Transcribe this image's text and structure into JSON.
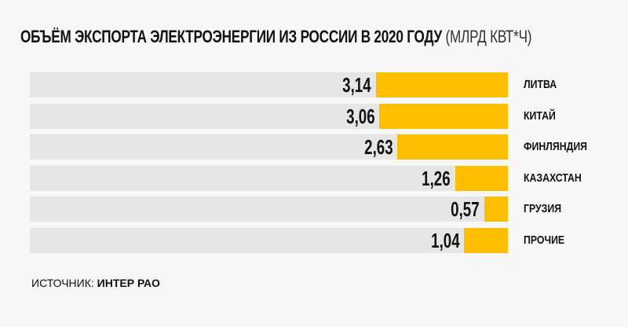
{
  "header": {
    "title": "ОБЪЁМ ЭКСПОРТА ЭЛЕКТРОЭНЕРГИИ ИЗ РОССИИ В 2020 ГОДУ",
    "unit": "(МЛРД КВТ*Ч)"
  },
  "colors": {
    "bar": "#ffbe00",
    "track": "#e6e6e6",
    "background": "#f7f7f7"
  },
  "rows": [
    {
      "label": "ЛИТВА",
      "value_text": "3,14",
      "value": 3.14
    },
    {
      "label": "КИТАЙ",
      "value_text": "3,06",
      "value": 3.06
    },
    {
      "label": "ФИНЛЯНДИЯ",
      "value_text": "2,63",
      "value": 2.63
    },
    {
      "label": "КАЗАХСТАН",
      "value_text": "1,26",
      "value": 1.26
    },
    {
      "label": "ГРУЗИЯ",
      "value_text": "0,57",
      "value": 0.57
    },
    {
      "label": "ПРОЧИЕ",
      "value_text": "1,04",
      "value": 1.04
    }
  ],
  "source": {
    "prefix": "ИСТОЧНИК:",
    "name": "ИНТЕР РАО"
  },
  "chart_data": {
    "type": "bar",
    "orientation": "horizontal",
    "title": "ОБЪЁМ ЭКСПОРТА ЭЛЕКТРОЭНЕРГИИ ИЗ РОССИИ В 2020 ГОДУ (МЛРД КВТ*Ч)",
    "categories": [
      "ЛИТВА",
      "КИТАЙ",
      "ФИНЛЯНДИЯ",
      "КАЗАХСТАН",
      "ГРУЗИЯ",
      "ПРОЧИЕ"
    ],
    "values": [
      3.14,
      3.06,
      2.63,
      1.26,
      0.57,
      1.04
    ],
    "xlabel": "",
    "ylabel": "",
    "grid": false,
    "legend": "none",
    "source": "ИСТОЧНИК: ИНТЕР РАО"
  }
}
